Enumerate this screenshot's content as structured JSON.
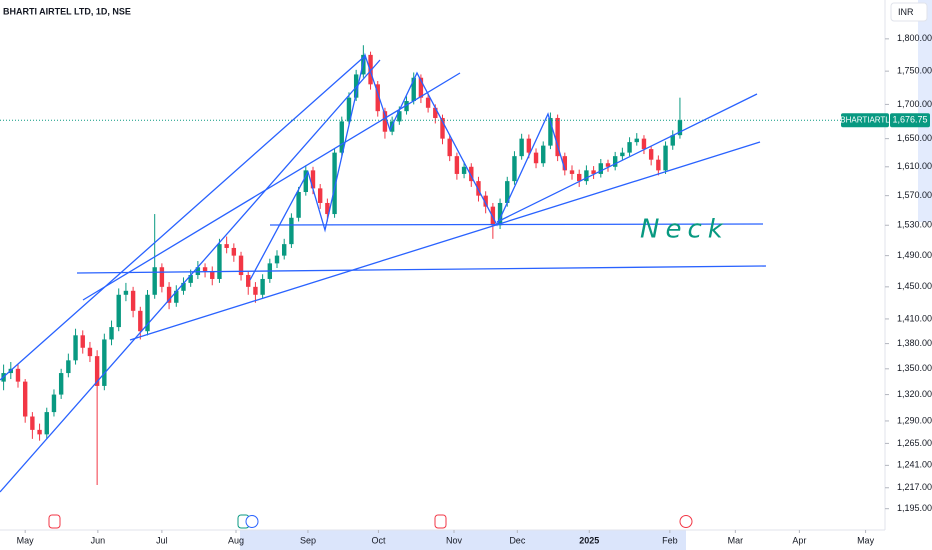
{
  "chart_data": {
    "type": "candlestick",
    "title": "BHARTI AIRTEL LTD, 1D, NSE",
    "currency": "INR",
    "symbol": "BHARTIARTL",
    "last_label": "1,676.75",
    "annotations": [
      "Neck"
    ],
    "log": true,
    "up_color": "#089981",
    "down_color": "#f23645",
    "ylim": [
      1173,
      1862
    ],
    "yticks": [
      {
        "value": 1195,
        "label": "1,195.00"
      },
      {
        "value": 1217,
        "label": "1,217.00"
      },
      {
        "value": 1241,
        "label": "1,241.00"
      },
      {
        "value": 1265,
        "label": "1,265.00"
      },
      {
        "value": 1290,
        "label": "1,290.00"
      },
      {
        "value": 1320,
        "label": "1,320.00"
      },
      {
        "value": 1350,
        "label": "1,350.00"
      },
      {
        "value": 1380,
        "label": "1,380.00"
      },
      {
        "value": 1410,
        "label": "1,410.00"
      },
      {
        "value": 1450,
        "label": "1,450.00"
      },
      {
        "value": 1490,
        "label": "1,490.00"
      },
      {
        "value": 1530,
        "label": "1,530.00"
      },
      {
        "value": 1570,
        "label": "1,570.00"
      },
      {
        "value": 1610,
        "label": "1,610.00"
      },
      {
        "value": 1650,
        "label": "1,650.00"
      },
      {
        "value": 1700,
        "label": "1,700.00"
      },
      {
        "value": 1750,
        "label": "1,750.00"
      },
      {
        "value": 1800,
        "label": "1,800.00"
      }
    ],
    "xlim": [
      -0.5,
      122.5
    ],
    "xticks": [
      {
        "value": 3,
        "label": "May"
      },
      {
        "value": 13.1,
        "label": "Jun"
      },
      {
        "value": 22,
        "label": "Jul"
      },
      {
        "value": 32.3,
        "label": "Aug"
      },
      {
        "value": 42.3,
        "label": "Sep"
      },
      {
        "value": 52.1,
        "label": "Oct"
      },
      {
        "value": 62.6,
        "label": "Nov"
      },
      {
        "value": 71.4,
        "label": "Dec"
      },
      {
        "value": 81.4,
        "label": "2025"
      },
      {
        "value": 92.6,
        "label": "Feb"
      },
      {
        "value": 101.7,
        "label": "Mar"
      },
      {
        "value": 110.6,
        "label": "Apr"
      },
      {
        "value": 119.8,
        "label": "May"
      }
    ],
    "open": [
      1335,
      1345,
      1350,
      1335,
      1295,
      1280,
      1275,
      1300,
      1320,
      1345,
      1360,
      1390,
      1375,
      1365,
      1330,
      1385,
      1400,
      1440,
      1445,
      1420,
      1395,
      1440,
      1475,
      1450,
      1430,
      1445,
      1455,
      1465,
      1475,
      1470,
      1460,
      1505,
      1500,
      1490,
      1465,
      1450,
      1440,
      1460,
      1480,
      1490,
      1505,
      1540,
      1575,
      1605,
      1580,
      1560,
      1545,
      1630,
      1675,
      1710,
      1745,
      1775,
      1730,
      1690,
      1660,
      1675,
      1690,
      1705,
      1740,
      1710,
      1695,
      1680,
      1650,
      1625,
      1600,
      1610,
      1590,
      1570,
      1555,
      1530,
      1560,
      1590,
      1625,
      1650,
      1630,
      1615,
      1640,
      1680,
      1625,
      1605,
      1600,
      1590,
      1605,
      1600,
      1615,
      1610,
      1625,
      1630,
      1645,
      1650,
      1635,
      1620,
      1605,
      1640,
      1655
    ],
    "high": [
      1355,
      1358,
      1356,
      1338,
      1300,
      1287,
      1305,
      1326,
      1350,
      1368,
      1398,
      1396,
      1382,
      1372,
      1392,
      1408,
      1448,
      1455,
      1450,
      1425,
      1446,
      1545,
      1480,
      1456,
      1452,
      1462,
      1472,
      1483,
      1480,
      1476,
      1512,
      1515,
      1506,
      1495,
      1470,
      1456,
      1466,
      1486,
      1497,
      1512,
      1546,
      1582,
      1612,
      1610,
      1586,
      1566,
      1636,
      1682,
      1718,
      1752,
      1790,
      1780,
      1735,
      1695,
      1682,
      1697,
      1712,
      1748,
      1745,
      1716,
      1700,
      1685,
      1656,
      1630,
      1617,
      1615,
      1596,
      1576,
      1560,
      1566,
      1596,
      1632,
      1657,
      1656,
      1636,
      1646,
      1688,
      1685,
      1630,
      1612,
      1606,
      1612,
      1611,
      1621,
      1620,
      1631,
      1637,
      1652,
      1658,
      1655,
      1640,
      1626,
      1646,
      1662,
      1710
    ],
    "low": [
      1325,
      1338,
      1328,
      1288,
      1270,
      1268,
      1270,
      1295,
      1315,
      1340,
      1355,
      1368,
      1358,
      1220,
      1325,
      1378,
      1395,
      1432,
      1412,
      1385,
      1390,
      1435,
      1443,
      1422,
      1425,
      1440,
      1450,
      1460,
      1462,
      1452,
      1455,
      1493,
      1482,
      1458,
      1440,
      1430,
      1435,
      1455,
      1474,
      1485,
      1500,
      1535,
      1570,
      1572,
      1552,
      1535,
      1540,
      1625,
      1670,
      1705,
      1740,
      1722,
      1682,
      1650,
      1655,
      1670,
      1685,
      1700,
      1702,
      1688,
      1672,
      1642,
      1618,
      1592,
      1594,
      1582,
      1562,
      1546,
      1512,
      1525,
      1555,
      1585,
      1620,
      1622,
      1608,
      1610,
      1635,
      1618,
      1598,
      1592,
      1582,
      1585,
      1593,
      1595,
      1603,
      1605,
      1620,
      1625,
      1640,
      1628,
      1612,
      1598,
      1600,
      1634,
      1650
    ],
    "close": [
      1345,
      1350,
      1335,
      1295,
      1280,
      1275,
      1300,
      1320,
      1345,
      1360,
      1390,
      1375,
      1365,
      1330,
      1385,
      1400,
      1440,
      1445,
      1420,
      1395,
      1440,
      1475,
      1450,
      1430,
      1445,
      1455,
      1465,
      1475,
      1470,
      1460,
      1505,
      1500,
      1490,
      1465,
      1450,
      1440,
      1460,
      1480,
      1490,
      1505,
      1540,
      1575,
      1605,
      1580,
      1560,
      1545,
      1630,
      1675,
      1710,
      1745,
      1775,
      1730,
      1690,
      1660,
      1675,
      1690,
      1705,
      1740,
      1710,
      1695,
      1680,
      1650,
      1625,
      1600,
      1610,
      1590,
      1570,
      1555,
      1530,
      1560,
      1590,
      1625,
      1650,
      1630,
      1615,
      1640,
      1680,
      1625,
      1605,
      1600,
      1590,
      1605,
      1600,
      1615,
      1610,
      1625,
      1630,
      1645,
      1650,
      1635,
      1620,
      1605,
      1640,
      1655,
      1676.75
    ]
  }
}
